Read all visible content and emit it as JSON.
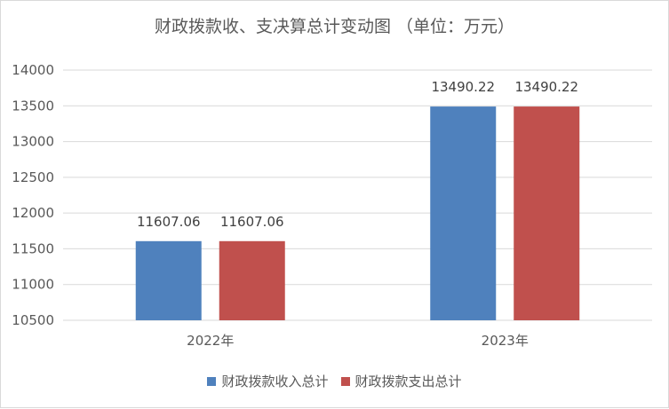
{
  "chart_data": {
    "type": "bar",
    "title": "财政拨款收、支决算总计变动图 （单位：万元）",
    "categories": [
      "2022年",
      "2023年"
    ],
    "series": [
      {
        "name": "财政拨款收入总计",
        "values": [
          11607.06,
          13490.22
        ],
        "labels": [
          "11607.06",
          "13490.22"
        ],
        "color": "#4F81BD"
      },
      {
        "name": "财政拨款支出总计",
        "values": [
          11607.06,
          13490.22
        ],
        "labels": [
          "11607.06",
          "13490.22"
        ],
        "color": "#C0504D"
      }
    ],
    "ylim": [
      10500,
      14000
    ],
    "yticks": [
      "10500",
      "11000",
      "11500",
      "12000",
      "12500",
      "13000",
      "13500",
      "14000"
    ],
    "grid": true,
    "legend_position": "bottom"
  }
}
